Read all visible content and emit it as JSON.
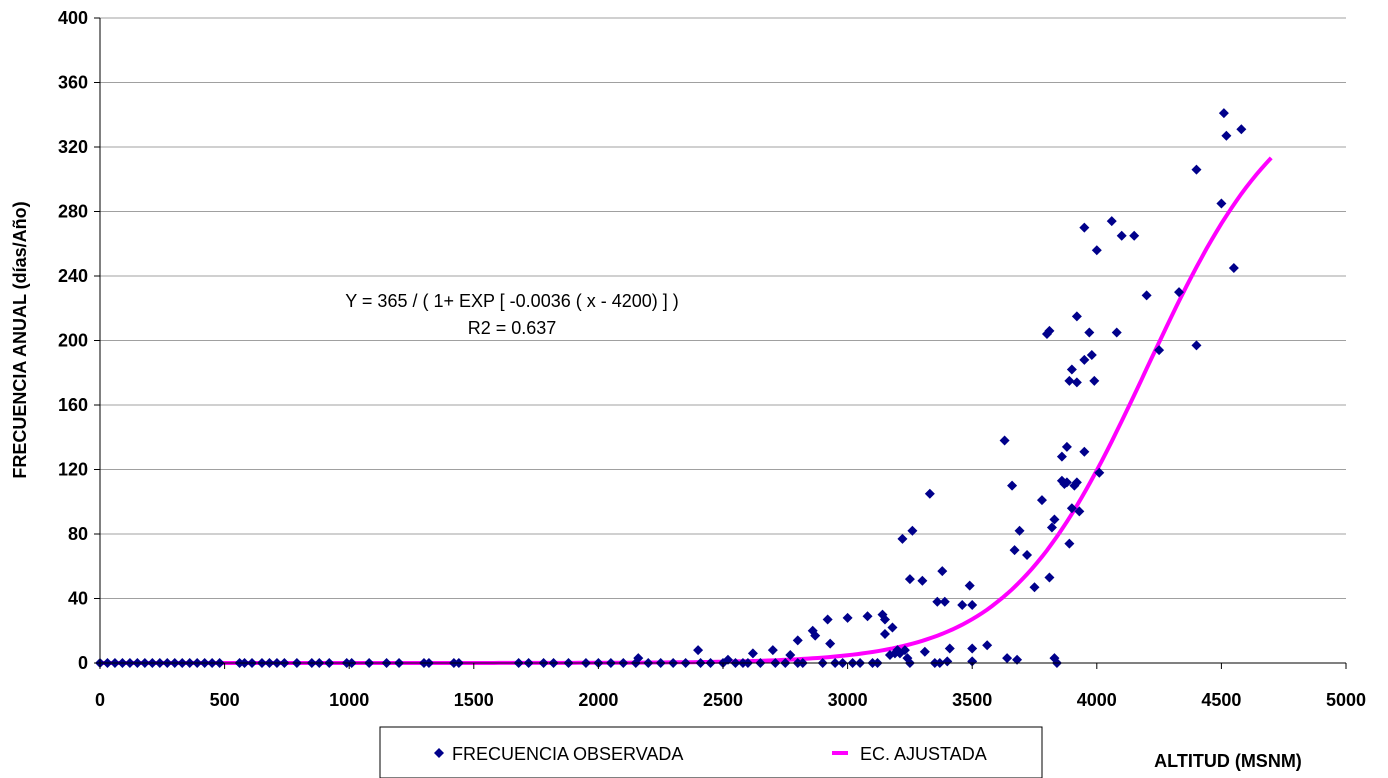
{
  "chart_data": {
    "type": "scatter",
    "title": "",
    "xlabel": "ALTITUD (MSNM)",
    "ylabel": "FRECUENCIA ANUAL (días/Año)",
    "xlim": [
      0,
      5000
    ],
    "ylim": [
      0,
      400
    ],
    "xticks": [
      0,
      500,
      1000,
      1500,
      2000,
      2500,
      3000,
      3500,
      4000,
      4500,
      5000
    ],
    "yticks": [
      0,
      40,
      80,
      120,
      160,
      200,
      240,
      280,
      320,
      360,
      400
    ],
    "grid": "horizontal",
    "legend_position": "bottom",
    "annotation": {
      "equation": "Y = 365 / ( 1+ EXP [ -0.0036 ( x - 4200) ] )",
      "r2": "R2 = 0.637"
    },
    "fit_model": {
      "a": 365,
      "k": 0.0036,
      "x0": 4200,
      "x_end": 4700
    },
    "series": [
      {
        "name": "FRECUENCIA OBSERVADA",
        "kind": "scatter",
        "color": "#00008B",
        "marker": "diamond",
        "points": [
          [
            0,
            0
          ],
          [
            30,
            0
          ],
          [
            60,
            0
          ],
          [
            90,
            0
          ],
          [
            120,
            0
          ],
          [
            150,
            0
          ],
          [
            180,
            0
          ],
          [
            210,
            0
          ],
          [
            240,
            0
          ],
          [
            270,
            0
          ],
          [
            300,
            0
          ],
          [
            330,
            0
          ],
          [
            360,
            0
          ],
          [
            390,
            0
          ],
          [
            420,
            0
          ],
          [
            450,
            0
          ],
          [
            480,
            0
          ],
          [
            560,
            0
          ],
          [
            580,
            0
          ],
          [
            610,
            0
          ],
          [
            650,
            0
          ],
          [
            680,
            0
          ],
          [
            710,
            0
          ],
          [
            740,
            0
          ],
          [
            790,
            0
          ],
          [
            850,
            0
          ],
          [
            880,
            0
          ],
          [
            920,
            0
          ],
          [
            990,
            0
          ],
          [
            1010,
            0
          ],
          [
            1080,
            0
          ],
          [
            1150,
            0
          ],
          [
            1200,
            0
          ],
          [
            1300,
            0
          ],
          [
            1320,
            0
          ],
          [
            1420,
            0
          ],
          [
            1440,
            0
          ],
          [
            1680,
            0
          ],
          [
            1720,
            0
          ],
          [
            1780,
            0
          ],
          [
            1820,
            0
          ],
          [
            1880,
            0
          ],
          [
            1950,
            0
          ],
          [
            2000,
            0
          ],
          [
            2050,
            0
          ],
          [
            2100,
            0
          ],
          [
            2150,
            0
          ],
          [
            2160,
            3
          ],
          [
            2200,
            0
          ],
          [
            2250,
            0
          ],
          [
            2300,
            0
          ],
          [
            2350,
            0
          ],
          [
            2400,
            8
          ],
          [
            2410,
            0
          ],
          [
            2450,
            0
          ],
          [
            2500,
            0
          ],
          [
            2520,
            2
          ],
          [
            2550,
            0
          ],
          [
            2580,
            0
          ],
          [
            2600,
            0
          ],
          [
            2620,
            6
          ],
          [
            2650,
            0
          ],
          [
            2700,
            8
          ],
          [
            2710,
            0
          ],
          [
            2750,
            0
          ],
          [
            2770,
            5
          ],
          [
            2800,
            14
          ],
          [
            2800,
            0
          ],
          [
            2820,
            0
          ],
          [
            2860,
            20
          ],
          [
            2870,
            17
          ],
          [
            2900,
            0
          ],
          [
            2920,
            27
          ],
          [
            2930,
            12
          ],
          [
            2950,
            0
          ],
          [
            2980,
            0
          ],
          [
            3000,
            28
          ],
          [
            3020,
            0
          ],
          [
            3050,
            0
          ],
          [
            3080,
            29
          ],
          [
            3100,
            0
          ],
          [
            3120,
            0
          ],
          [
            3140,
            30
          ],
          [
            3150,
            27
          ],
          [
            3150,
            18
          ],
          [
            3170,
            5
          ],
          [
            3180,
            22
          ],
          [
            3190,
            6
          ],
          [
            3200,
            8
          ],
          [
            3210,
            6
          ],
          [
            3220,
            77
          ],
          [
            3230,
            8
          ],
          [
            3240,
            3
          ],
          [
            3250,
            0
          ],
          [
            3250,
            52
          ],
          [
            3260,
            82
          ],
          [
            3300,
            51
          ],
          [
            3310,
            7
          ],
          [
            3330,
            105
          ],
          [
            3350,
            0
          ],
          [
            3360,
            38
          ],
          [
            3370,
            0
          ],
          [
            3380,
            57
          ],
          [
            3390,
            38
          ],
          [
            3400,
            1
          ],
          [
            3410,
            9
          ],
          [
            3460,
            36
          ],
          [
            3490,
            48
          ],
          [
            3500,
            36
          ],
          [
            3500,
            9
          ],
          [
            3500,
            1
          ],
          [
            3560,
            11
          ],
          [
            3630,
            138
          ],
          [
            3640,
            3
          ],
          [
            3660,
            110
          ],
          [
            3670,
            70
          ],
          [
            3680,
            2
          ],
          [
            3690,
            82
          ],
          [
            3720,
            67
          ],
          [
            3750,
            47
          ],
          [
            3780,
            101
          ],
          [
            3800,
            204
          ],
          [
            3810,
            206
          ],
          [
            3810,
            53
          ],
          [
            3820,
            84
          ],
          [
            3830,
            89
          ],
          [
            3830,
            3
          ],
          [
            3840,
            0
          ],
          [
            3860,
            113
          ],
          [
            3860,
            128
          ],
          [
            3870,
            111
          ],
          [
            3880,
            112
          ],
          [
            3880,
            134
          ],
          [
            3890,
            74
          ],
          [
            3890,
            175
          ],
          [
            3900,
            182
          ],
          [
            3900,
            96
          ],
          [
            3910,
            110
          ],
          [
            3920,
            174
          ],
          [
            3920,
            112
          ],
          [
            3930,
            94
          ],
          [
            3920,
            215
          ],
          [
            3950,
            270
          ],
          [
            3950,
            188
          ],
          [
            3950,
            131
          ],
          [
            3970,
            205
          ],
          [
            3980,
            191
          ],
          [
            3990,
            175
          ],
          [
            4000,
            256
          ],
          [
            4010,
            118
          ],
          [
            4060,
            274
          ],
          [
            4080,
            205
          ],
          [
            4100,
            265
          ],
          [
            4150,
            265
          ],
          [
            4200,
            228
          ],
          [
            4250,
            194
          ],
          [
            4330,
            230
          ],
          [
            4400,
            306
          ],
          [
            4400,
            197
          ],
          [
            4500,
            285
          ],
          [
            4510,
            341
          ],
          [
            4520,
            327
          ],
          [
            4550,
            245
          ],
          [
            4580,
            331
          ]
        ]
      },
      {
        "name": "EC. AJUSTADA",
        "kind": "line",
        "color": "#FF00FF"
      }
    ]
  }
}
